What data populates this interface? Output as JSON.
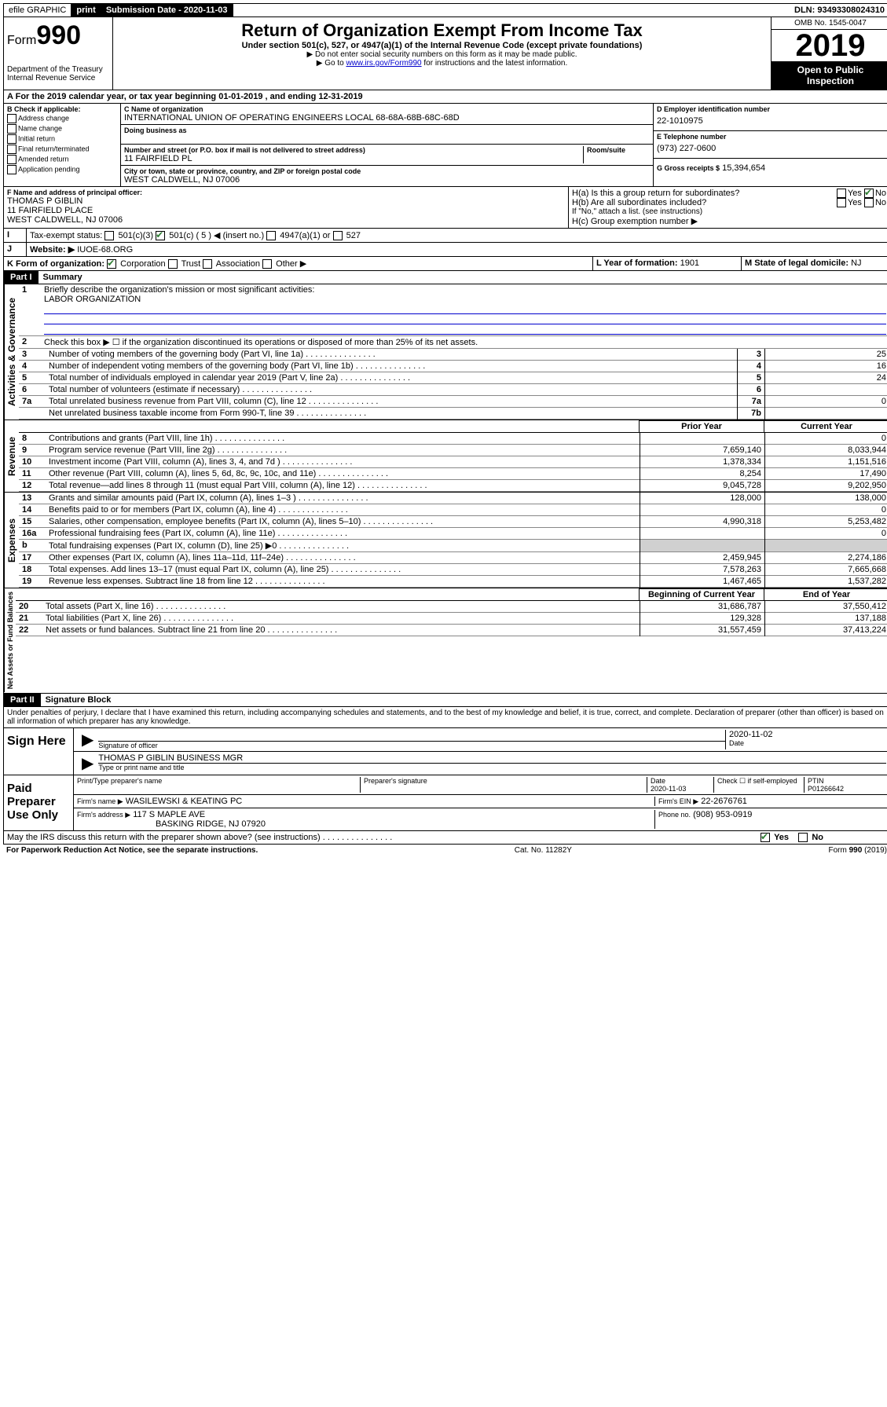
{
  "topbar": {
    "efile": "efile GRAPHIC",
    "print": "print",
    "subdate_label": "Submission Date - 2020-11-03",
    "dln": "DLN: 93493308024310"
  },
  "header": {
    "form_label": "Form",
    "form_number": "990",
    "dept": "Department of the Treasury",
    "irs": "Internal Revenue Service",
    "title": "Return of Organization Exempt From Income Tax",
    "subtitle": "Under section 501(c), 527, or 4947(a)(1) of the Internal Revenue Code (except private foundations)",
    "note1": "▶ Do not enter social security numbers on this form as it may be made public.",
    "note2_pre": "▶ Go to ",
    "note2_link": "www.irs.gov/Form990",
    "note2_post": " for instructions and the latest information.",
    "omb": "OMB No. 1545-0047",
    "year": "2019",
    "open": "Open to Public Inspection"
  },
  "sectionA": {
    "line": "For the 2019 calendar year, or tax year beginning 01-01-2019    , and ending 12-31-2019"
  },
  "boxB": {
    "label": "B Check if applicable:",
    "items": [
      "Address change",
      "Name change",
      "Initial return",
      "Final return/terminated",
      "Amended return",
      "Application pending"
    ]
  },
  "boxC": {
    "name_label": "C Name of organization",
    "name": "INTERNATIONAL UNION OF OPERATING ENGINEERS LOCAL 68-68A-68B-68C-68D",
    "dba_label": "Doing business as",
    "addr_label": "Number and street (or P.O. box if mail is not delivered to street address)",
    "room_label": "Room/suite",
    "addr": "11 FAIRFIELD PL",
    "city_label": "City or town, state or province, country, and ZIP or foreign postal code",
    "city": "WEST CALDWELL, NJ  07006"
  },
  "boxD": {
    "label": "D Employer identification number",
    "value": "22-1010975"
  },
  "boxE": {
    "label": "E Telephone number",
    "value": "(973) 227-0600"
  },
  "boxG": {
    "label": "G Gross receipts $",
    "value": "15,394,654"
  },
  "boxF": {
    "label": "F  Name and address of principal officer:",
    "name": "THOMAS P GIBLIN",
    "addr1": "11 FAIRFIELD PLACE",
    "addr2": "WEST CALDWELL, NJ  07006"
  },
  "boxH": {
    "a": "H(a)  Is this a group return for subordinates?",
    "b": "H(b)  Are all subordinates included?",
    "yes": "Yes",
    "no": "No",
    "note": "If \"No,\" attach a list. (see instructions)",
    "c": "H(c)  Group exemption number ▶"
  },
  "boxI": {
    "label": "Tax-exempt status:",
    "opt1": "501(c)(3)",
    "opt2": "501(c) ( 5 ) ◀ (insert no.)",
    "opt3": "4947(a)(1) or",
    "opt4": "527"
  },
  "boxJ": {
    "label": "J",
    "text": "Website: ▶",
    "value": "IUOE-68.ORG"
  },
  "boxK": {
    "label": "K Form of organization:",
    "opts": [
      "Corporation",
      "Trust",
      "Association",
      "Other ▶"
    ]
  },
  "boxL": {
    "label": "L Year of formation:",
    "value": "1901"
  },
  "boxM": {
    "label": "M State of legal domicile:",
    "value": "NJ"
  },
  "part1": {
    "header": "Part I",
    "title": "Summary",
    "q1": "Briefly describe the organization's mission or most significant activities:",
    "q1a": "LABOR ORGANIZATION",
    "q2": "Check this box ▶ ☐  if the organization discontinued its operations or disposed of more than 25% of its net assets.",
    "lines_gov": [
      {
        "n": "3",
        "t": "Number of voting members of the governing body (Part VI, line 1a)",
        "r": "3",
        "v": "25"
      },
      {
        "n": "4",
        "t": "Number of independent voting members of the governing body (Part VI, line 1b)",
        "r": "4",
        "v": "16"
      },
      {
        "n": "5",
        "t": "Total number of individuals employed in calendar year 2019 (Part V, line 2a)",
        "r": "5",
        "v": "24"
      },
      {
        "n": "6",
        "t": "Total number of volunteers (estimate if necessary)",
        "r": "6",
        "v": ""
      },
      {
        "n": "7a",
        "t": "Total unrelated business revenue from Part VIII, column (C), line 12",
        "r": "7a",
        "v": "0"
      },
      {
        "n": "",
        "t": "Net unrelated business taxable income from Form 990-T, line 39",
        "r": "7b",
        "v": ""
      }
    ],
    "col_prior": "Prior Year",
    "col_current": "Current Year",
    "lines_rev": [
      {
        "n": "8",
        "t": "Contributions and grants (Part VIII, line 1h)",
        "p": "",
        "c": "0"
      },
      {
        "n": "9",
        "t": "Program service revenue (Part VIII, line 2g)",
        "p": "7,659,140",
        "c": "8,033,944"
      },
      {
        "n": "10",
        "t": "Investment income (Part VIII, column (A), lines 3, 4, and 7d )",
        "p": "1,378,334",
        "c": "1,151,516"
      },
      {
        "n": "11",
        "t": "Other revenue (Part VIII, column (A), lines 5, 6d, 8c, 9c, 10c, and 11e)",
        "p": "8,254",
        "c": "17,490"
      },
      {
        "n": "12",
        "t": "Total revenue—add lines 8 through 11 (must equal Part VIII, column (A), line 12)",
        "p": "9,045,728",
        "c": "9,202,950"
      }
    ],
    "lines_exp": [
      {
        "n": "13",
        "t": "Grants and similar amounts paid (Part IX, column (A), lines 1–3 )",
        "p": "128,000",
        "c": "138,000"
      },
      {
        "n": "14",
        "t": "Benefits paid to or for members (Part IX, column (A), line 4)",
        "p": "",
        "c": "0"
      },
      {
        "n": "15",
        "t": "Salaries, other compensation, employee benefits (Part IX, column (A), lines 5–10)",
        "p": "4,990,318",
        "c": "5,253,482"
      },
      {
        "n": "16a",
        "t": "Professional fundraising fees (Part IX, column (A), line 11e)",
        "p": "",
        "c": "0"
      },
      {
        "n": "b",
        "t": "Total fundraising expenses (Part IX, column (D), line 25) ▶0",
        "p": "shade",
        "c": "shade"
      },
      {
        "n": "17",
        "t": "Other expenses (Part IX, column (A), lines 11a–11d, 11f–24e)",
        "p": "2,459,945",
        "c": "2,274,186"
      },
      {
        "n": "18",
        "t": "Total expenses. Add lines 13–17 (must equal Part IX, column (A), line 25)",
        "p": "7,578,263",
        "c": "7,665,668"
      },
      {
        "n": "19",
        "t": "Revenue less expenses. Subtract line 18 from line 12",
        "p": "1,467,465",
        "c": "1,537,282"
      }
    ],
    "col_begin": "Beginning of Current Year",
    "col_end": "End of Year",
    "lines_net": [
      {
        "n": "20",
        "t": "Total assets (Part X, line 16)",
        "p": "31,686,787",
        "c": "37,550,412"
      },
      {
        "n": "21",
        "t": "Total liabilities (Part X, line 26)",
        "p": "129,328",
        "c": "137,188"
      },
      {
        "n": "22",
        "t": "Net assets or fund balances. Subtract line 21 from line 20",
        "p": "31,557,459",
        "c": "37,413,224"
      }
    ],
    "vlabels": {
      "gov": "Activities & Governance",
      "rev": "Revenue",
      "exp": "Expenses",
      "net": "Net Assets or Fund Balances"
    }
  },
  "part2": {
    "header": "Part II",
    "title": "Signature Block",
    "decl": "Under penalties of perjury, I declare that I have examined this return, including accompanying schedules and statements, and to the best of my knowledge and belief, it is true, correct, and complete. Declaration of preparer (other than officer) is based on all information of which preparer has any knowledge."
  },
  "sign": {
    "left": "Sign Here",
    "sig_label": "Signature of officer",
    "date": "2020-11-02",
    "date_label": "Date",
    "name": "THOMAS P GIBLIN  BUSINESS MGR",
    "name_label": "Type or print name and title"
  },
  "paid": {
    "left": "Paid Preparer Use Only",
    "h1": "Print/Type preparer's name",
    "h2": "Preparer's signature",
    "h3": "Date",
    "h3v": "2020-11-03",
    "h4": "Check ☐ if self-employed",
    "h5": "PTIN",
    "h5v": "P01266642",
    "firm_label": "Firm's name    ▶",
    "firm": "WASILEWSKI & KEATING PC",
    "ein_label": "Firm's EIN ▶",
    "ein": "22-2676761",
    "addr_label": "Firm's address ▶",
    "addr1": "117 S MAPLE AVE",
    "addr2": "BASKING RIDGE, NJ  07920",
    "phone_label": "Phone no.",
    "phone": "(908) 953-0919"
  },
  "discuss": {
    "q": "May the IRS discuss this return with the preparer shown above? (see instructions)",
    "yes": "Yes",
    "no": "No"
  },
  "footer": {
    "left": "For Paperwork Reduction Act Notice, see the separate instructions.",
    "mid": "Cat. No. 11282Y",
    "right": "Form 990 (2019)"
  }
}
